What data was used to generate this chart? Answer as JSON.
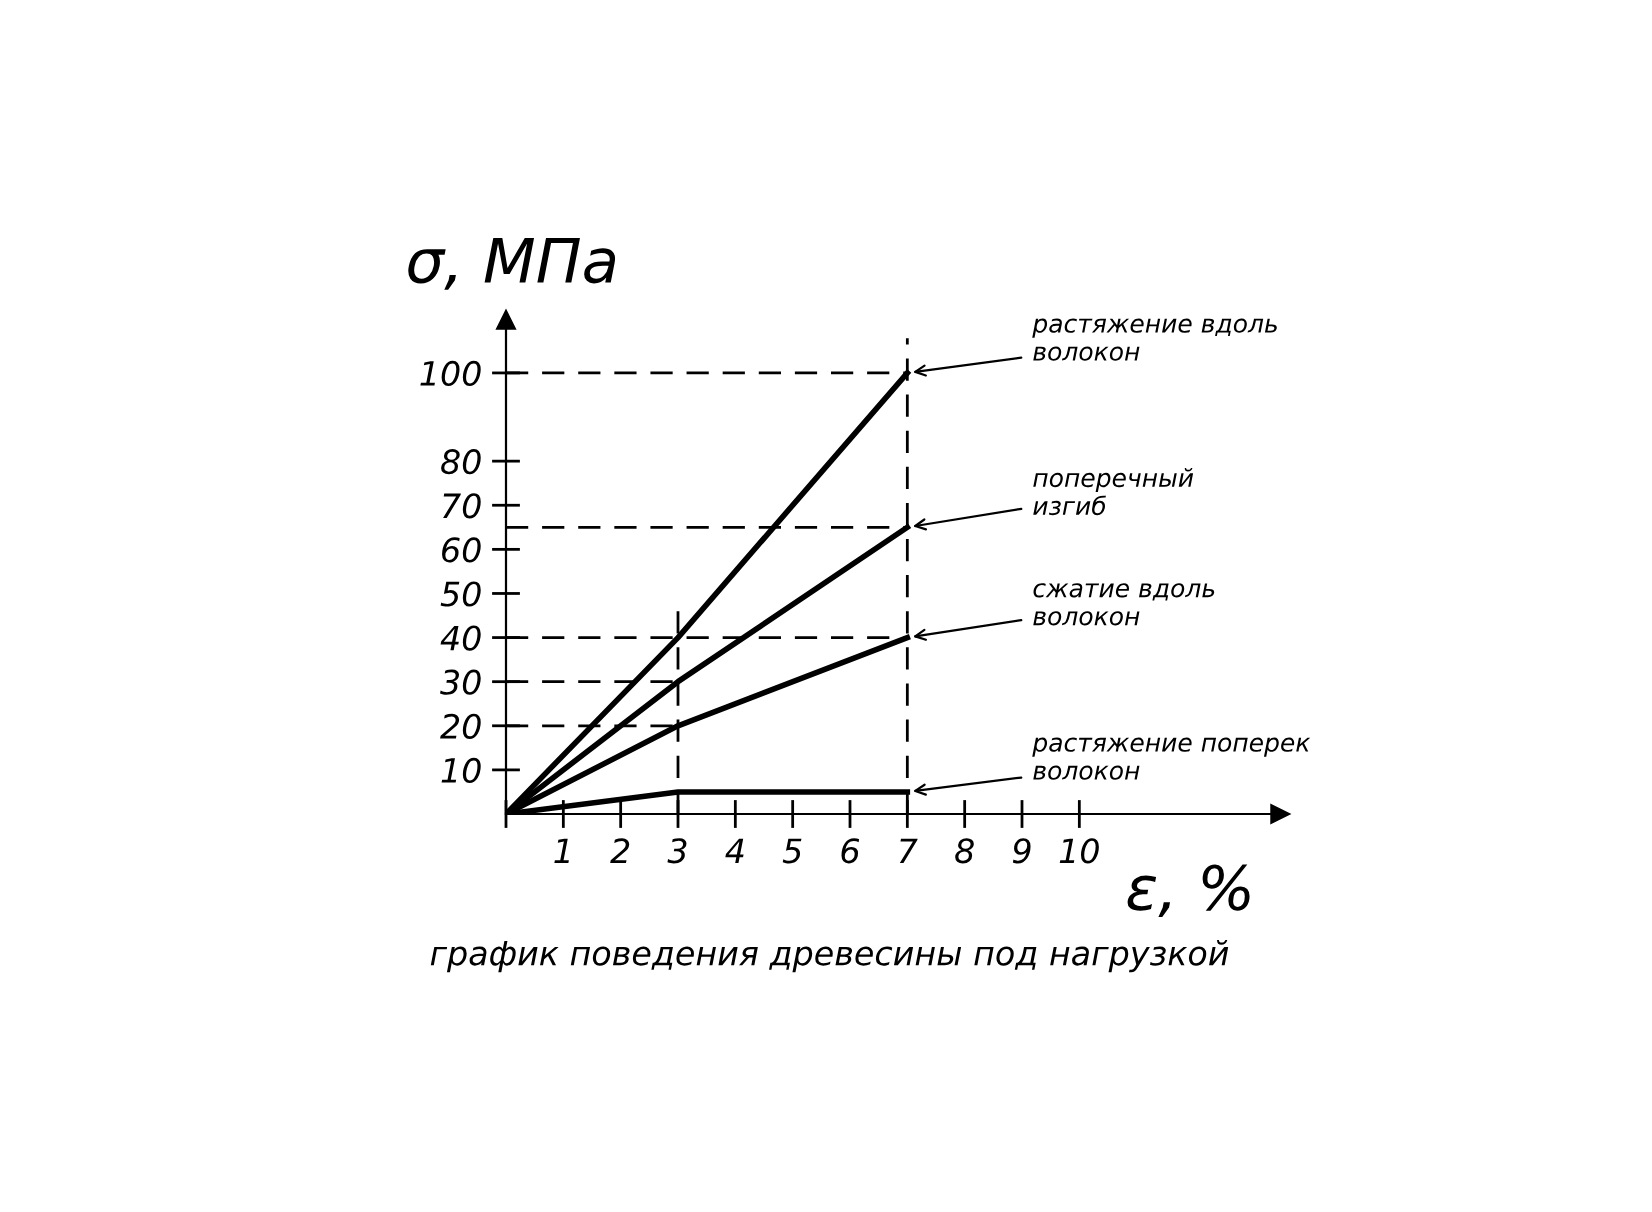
{
  "chart_data": {
    "type": "line",
    "xlabel": "ε, %",
    "ylabel": "σ, МПа",
    "x": [
      0,
      3,
      7
    ],
    "series": [
      {
        "name": "растяжение вдоль\nволокон",
        "color": "#000000",
        "values": [
          0,
          40,
          100
        ]
      },
      {
        "name": "поперечный\nизгиб",
        "color": "#000000",
        "values": [
          0,
          30,
          65
        ]
      },
      {
        "name": "сжатие вдоль\nволокон",
        "color": "#000000",
        "values": [
          0,
          20,
          40
        ]
      },
      {
        "name": "растяжение поперек\nволокон",
        "color": "#000000",
        "values": [
          0,
          5,
          5
        ]
      }
    ],
    "xlim": [
      0,
      13.5
    ],
    "ylim": [
      0,
      112
    ],
    "xticks": [
      {
        "value": 0,
        "label": null
      },
      1,
      2,
      3,
      4,
      5,
      6,
      7,
      8,
      9,
      10
    ],
    "yticks": [
      10,
      20,
      30,
      40,
      50,
      60,
      70,
      80,
      100
    ],
    "ref_lines": [
      {
        "axis": "y",
        "value": 100,
        "color": "#000000",
        "line_style": "dashed"
      },
      {
        "axis": "y",
        "value": 65,
        "color": "#000000",
        "line_style": "dashed"
      },
      {
        "axis": "y",
        "value": 40,
        "color": "#000000",
        "line_style": "dashed"
      },
      {
        "axis": "y",
        "value": 30,
        "color": "#000000",
        "line_style": "dashed"
      },
      {
        "axis": "y",
        "value": 20,
        "color": "#000000",
        "line_style": "dashed"
      },
      {
        "axis": "x",
        "value": 3,
        "color": "#000000",
        "line_style": "dashed"
      },
      {
        "axis": "x",
        "value": 7,
        "color": "#000000",
        "line_style": "dashed"
      }
    ],
    "annotations": [
      "график поведения древесины под нагрузкой"
    ],
    "grid": false,
    "legend": false,
    "marker": "none",
    "line_style": "solid"
  }
}
